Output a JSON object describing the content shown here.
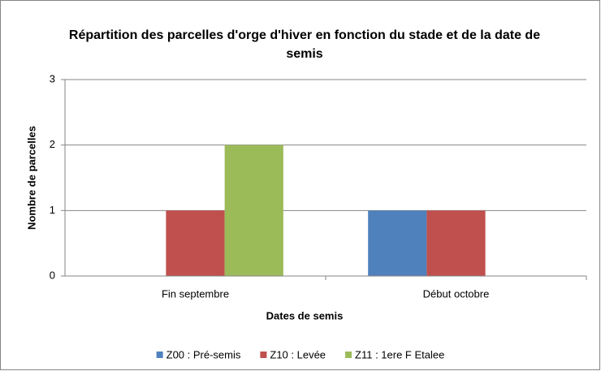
{
  "chart_data": {
    "type": "bar",
    "title": "Répartition des parcelles d'orge d'hiver en fonction du stade et de la date de semis",
    "x_label": "Dates de semis",
    "y_label": "Nombre de parcelles",
    "categories": [
      "Fin septembre",
      "Début octobre"
    ],
    "series": [
      {
        "name": "Z00 : Pré-semis",
        "color": "#4f81bd",
        "values": [
          0,
          1
        ]
      },
      {
        "name": "Z10 : Levée",
        "color": "#c0504d",
        "values": [
          1,
          1
        ]
      },
      {
        "name": "Z11 : 1ere F Etalee",
        "color": "#9bbb59",
        "values": [
          2,
          0
        ]
      }
    ],
    "ylim": [
      0,
      3
    ],
    "yticks": [
      0,
      1,
      2,
      3
    ],
    "grid": true,
    "legend": "bottom"
  }
}
